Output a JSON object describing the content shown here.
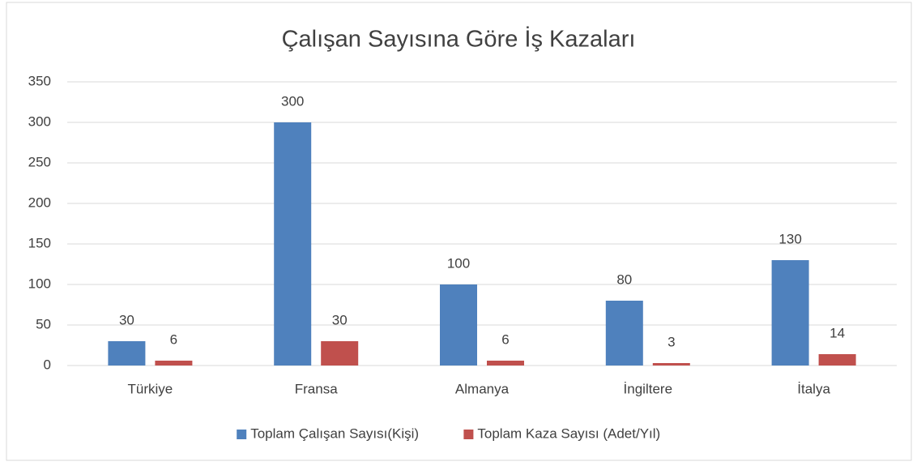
{
  "chart_data": {
    "type": "bar",
    "title": "Çalışan Sayısına Göre İş Kazaları",
    "categories": [
      "Türkiye",
      "Fransa",
      "Almanya",
      "İngiltere",
      "İtalya"
    ],
    "series": [
      {
        "name": "Toplam Çalışan Sayısı(Kişi)",
        "color": "#4f81bd",
        "values": [
          30,
          300,
          100,
          80,
          130
        ]
      },
      {
        "name": "Toplam Kaza Sayısı (Adet/Yıl)",
        "color": "#c0504d",
        "values": [
          6,
          30,
          6,
          3,
          14
        ]
      }
    ],
    "ylim": [
      0,
      350
    ],
    "yticks": [
      0,
      50,
      100,
      150,
      200,
      250,
      300,
      350
    ],
    "grid": true,
    "legend": "bottom"
  }
}
